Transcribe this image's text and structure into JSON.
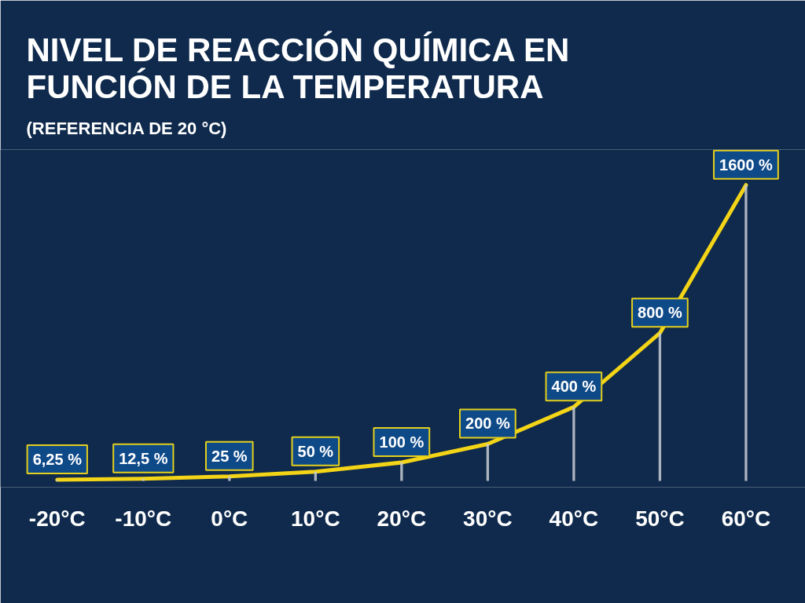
{
  "chart_data": {
    "type": "line",
    "title": "NIVEL DE REACCIÓN QUÍMICA EN FUNCIÓN DE LA TEMPERATURA",
    "subtitle": "(REFERENCIA DE 20 °C)",
    "categories": [
      "-20°C",
      "-10°C",
      "0°C",
      "10°C",
      "20°C",
      "30°C",
      "40°C",
      "50°C",
      "60°C"
    ],
    "series": [
      {
        "type": "bar",
        "color": "#c8ccd4",
        "values": [
          6.25,
          12.5,
          25,
          50,
          100,
          200,
          400,
          800,
          1600
        ]
      },
      {
        "color": "#f3d417",
        "values": [
          6.25,
          12.5,
          25,
          50,
          100,
          200,
          400,
          800,
          1600
        ],
        "value_labels": [
          "6,25 %",
          "12,5 %",
          "25 %",
          "50 %",
          "100 %",
          "200 %",
          "400 %",
          "800 %",
          "1600 %"
        ]
      }
    ],
    "tick_labels": "x",
    "grid": false
  }
}
